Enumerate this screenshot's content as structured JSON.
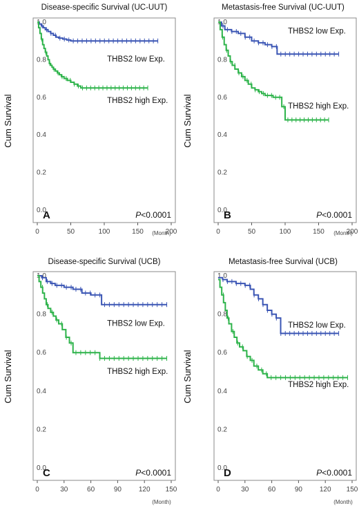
{
  "chart_data": [
    {
      "type": "line",
      "panel": "A",
      "title": "Disease-specific Survival (UC-UUT)",
      "ylabel": "Cum Survival",
      "xunit": "(Month)",
      "pvalue": {
        "italic": "P",
        "rest": "<0.0001"
      },
      "xlim": [
        0,
        200
      ],
      "ylim": [
        0.0,
        1.0
      ],
      "xticks": [
        0,
        50,
        100,
        150,
        200
      ],
      "yticks": [
        0.0,
        0.2,
        0.4,
        0.6,
        0.8,
        1.0
      ],
      "yticklabels": [
        "0.0",
        "0.2",
        "0.4",
        "0.6",
        "0.8",
        "1.0"
      ],
      "series": [
        {
          "name": "THBS2 low Exp.",
          "color": "#3a55b4",
          "x": [
            0,
            3,
            6,
            9,
            12,
            16,
            20,
            24,
            28,
            32,
            38,
            44,
            50,
            60,
            75,
            95,
            120,
            150,
            180
          ],
          "y": [
            1.0,
            0.99,
            0.98,
            0.97,
            0.96,
            0.95,
            0.94,
            0.93,
            0.92,
            0.915,
            0.91,
            0.905,
            0.9,
            0.9,
            0.9,
            0.9,
            0.9,
            0.9,
            0.9
          ]
        },
        {
          "name": "THBS2 high Exp.",
          "color": "#2db34a",
          "x": [
            0,
            2,
            4,
            6,
            8,
            10,
            12,
            14,
            16,
            18,
            20,
            22,
            24,
            27,
            30,
            33,
            36,
            40,
            45,
            50,
            55,
            60,
            65,
            75,
            100,
            130,
            165
          ],
          "y": [
            1.0,
            0.97,
            0.94,
            0.91,
            0.88,
            0.86,
            0.84,
            0.82,
            0.8,
            0.78,
            0.77,
            0.76,
            0.75,
            0.74,
            0.73,
            0.72,
            0.71,
            0.7,
            0.69,
            0.68,
            0.67,
            0.66,
            0.65,
            0.65,
            0.65,
            0.65,
            0.65
          ]
        }
      ]
    },
    {
      "type": "line",
      "panel": "B",
      "title": "Metastasis-free Survival (UC-UUT)",
      "ylabel": "Cum Survival",
      "xunit": "(Month)",
      "pvalue": {
        "italic": "P",
        "rest": "<0.0001"
      },
      "xlim": [
        0,
        200
      ],
      "ylim": [
        0.0,
        1.0
      ],
      "xticks": [
        0,
        50,
        100,
        150,
        200
      ],
      "yticks": [
        0.0,
        0.2,
        0.4,
        0.6,
        0.8,
        1.0
      ],
      "yticklabels": [
        "0.0",
        "0.2",
        "0.4",
        "0.6",
        "0.8",
        "1.0"
      ],
      "series": [
        {
          "name": "THBS2 low Exp.",
          "color": "#3a55b4",
          "x": [
            0,
            5,
            10,
            20,
            30,
            40,
            50,
            60,
            70,
            80,
            88,
            100,
            120,
            150,
            180
          ],
          "y": [
            1.0,
            0.98,
            0.96,
            0.95,
            0.94,
            0.92,
            0.9,
            0.89,
            0.88,
            0.87,
            0.83,
            0.83,
            0.83,
            0.83,
            0.83
          ]
        },
        {
          "name": "THBS2 high Exp.",
          "color": "#2db34a",
          "x": [
            0,
            3,
            6,
            9,
            12,
            15,
            18,
            21,
            25,
            30,
            35,
            40,
            45,
            50,
            55,
            60,
            65,
            70,
            75,
            82,
            88,
            95,
            100,
            130,
            165
          ],
          "y": [
            1.0,
            0.96,
            0.92,
            0.88,
            0.85,
            0.82,
            0.79,
            0.77,
            0.75,
            0.73,
            0.71,
            0.69,
            0.67,
            0.65,
            0.64,
            0.63,
            0.62,
            0.61,
            0.61,
            0.6,
            0.6,
            0.55,
            0.48,
            0.48,
            0.48
          ]
        }
      ]
    },
    {
      "type": "line",
      "panel": "C",
      "title": "Disease-specific Survival (UCB)",
      "ylabel": "Cum Survival",
      "xunit": "(Month)",
      "pvalue": {
        "italic": "P",
        "rest": "<0.0001"
      },
      "xlim": [
        0,
        150
      ],
      "ylim": [
        0.0,
        1.0
      ],
      "xticks": [
        0,
        30,
        60,
        90,
        120,
        150
      ],
      "yticks": [
        0.0,
        0.2,
        0.4,
        0.6,
        0.8,
        1.0
      ],
      "yticklabels": [
        "0.0",
        "0.2",
        "0.4",
        "0.6",
        "0.8",
        "1.0"
      ],
      "series": [
        {
          "name": "THBS2 low Exp.",
          "color": "#3a55b4",
          "x": [
            0,
            5,
            10,
            15,
            20,
            30,
            40,
            50,
            60,
            70,
            72,
            100,
            120,
            145
          ],
          "y": [
            1.0,
            0.99,
            0.97,
            0.96,
            0.95,
            0.94,
            0.93,
            0.91,
            0.9,
            0.9,
            0.85,
            0.85,
            0.85,
            0.85
          ]
        },
        {
          "name": "THBS2 high Exp.",
          "color": "#2db34a",
          "x": [
            0,
            2,
            4,
            6,
            8,
            10,
            12,
            15,
            18,
            21,
            24,
            28,
            32,
            36,
            40,
            45,
            50,
            60,
            68,
            70,
            90,
            120,
            145
          ],
          "y": [
            1.0,
            0.97,
            0.94,
            0.91,
            0.88,
            0.85,
            0.83,
            0.81,
            0.79,
            0.77,
            0.75,
            0.72,
            0.68,
            0.65,
            0.6,
            0.6,
            0.6,
            0.6,
            0.6,
            0.57,
            0.57,
            0.57,
            0.57
          ]
        }
      ]
    },
    {
      "type": "line",
      "panel": "D",
      "title": "Metastasis-free Survival (UCB)",
      "ylabel": "Cum Survival",
      "xunit": "(Month)",
      "pvalue": {
        "italic": "P",
        "rest": "<0.0001"
      },
      "xlim": [
        0,
        150
      ],
      "ylim": [
        0.0,
        1.0
      ],
      "xticks": [
        0,
        30,
        60,
        90,
        120,
        150
      ],
      "yticks": [
        0.0,
        0.2,
        0.4,
        0.6,
        0.8,
        1.0
      ],
      "yticklabels": [
        "0.0",
        "0.2",
        "0.4",
        "0.6",
        "0.8",
        "1.0"
      ],
      "series": [
        {
          "name": "THBS2 low Exp.",
          "color": "#3a55b4",
          "x": [
            0,
            5,
            10,
            20,
            30,
            36,
            40,
            45,
            50,
            55,
            60,
            65,
            70,
            100,
            135
          ],
          "y": [
            0.99,
            0.98,
            0.97,
            0.96,
            0.95,
            0.93,
            0.9,
            0.88,
            0.85,
            0.82,
            0.8,
            0.78,
            0.7,
            0.7,
            0.7
          ]
        },
        {
          "name": "THBS2 high Exp.",
          "color": "#2db34a",
          "x": [
            0,
            2,
            4,
            6,
            8,
            10,
            12,
            15,
            18,
            21,
            24,
            28,
            32,
            36,
            40,
            45,
            50,
            55,
            60,
            100,
            145
          ],
          "y": [
            0.98,
            0.94,
            0.9,
            0.86,
            0.82,
            0.78,
            0.75,
            0.71,
            0.68,
            0.65,
            0.63,
            0.61,
            0.58,
            0.56,
            0.53,
            0.51,
            0.49,
            0.47,
            0.47,
            0.47,
            0.47
          ]
        }
      ]
    }
  ]
}
